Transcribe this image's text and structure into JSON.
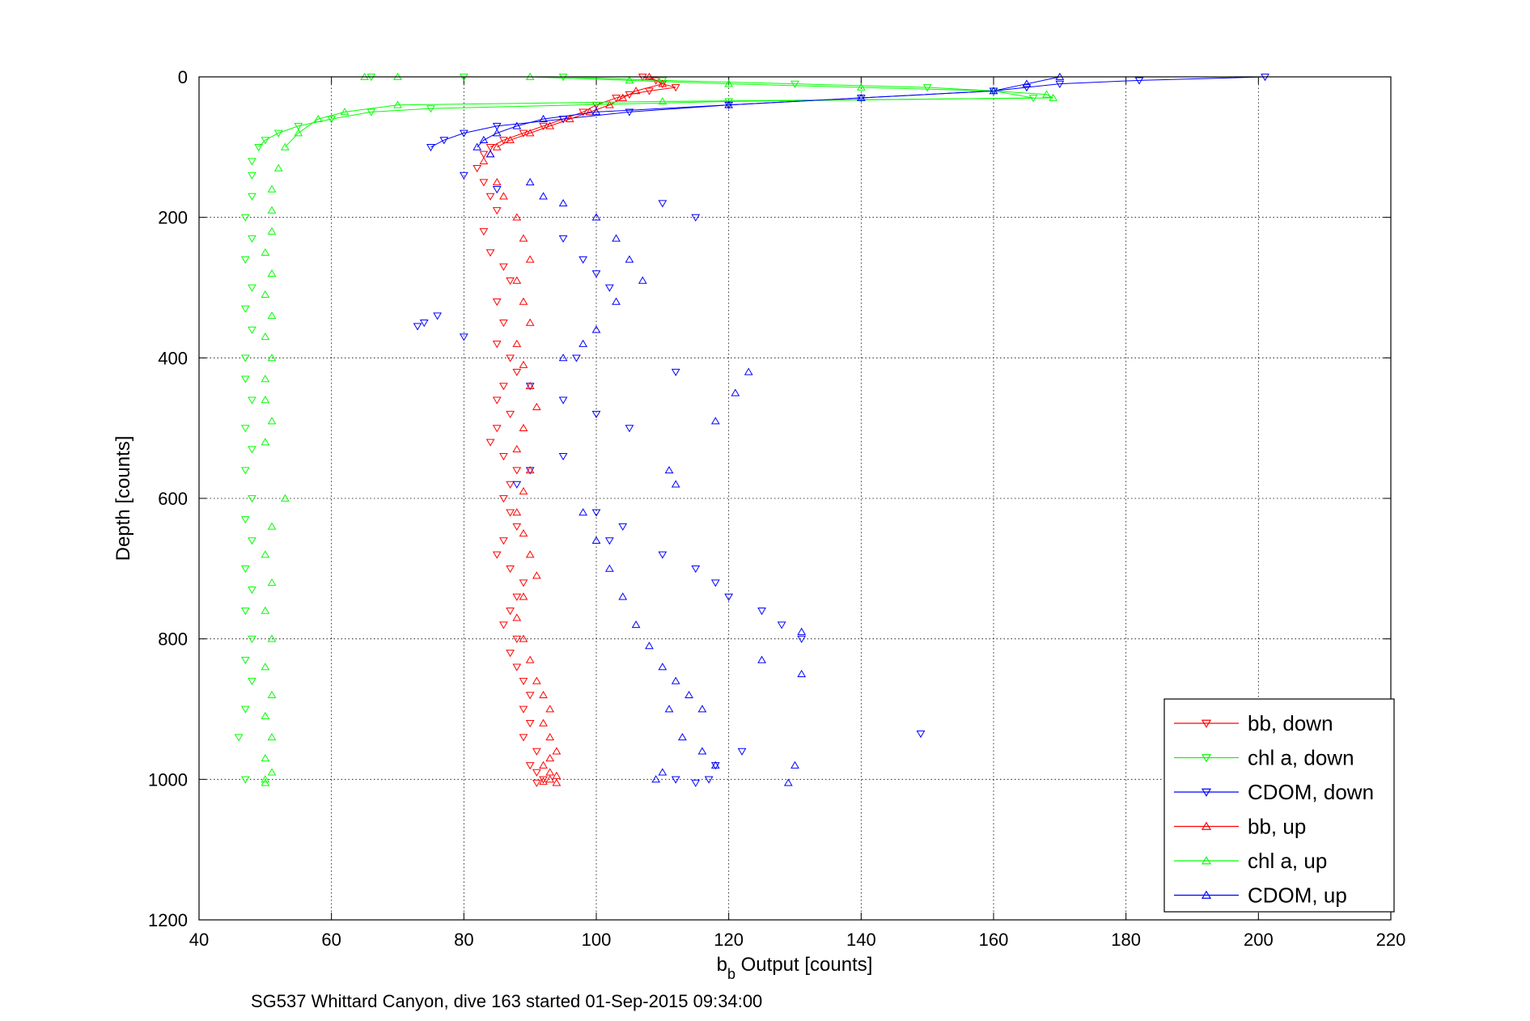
{
  "chart_data": {
    "type": "scatter",
    "title": "",
    "xlabel_main": "b",
    "xlabel_sub": "b",
    "xlabel_rest": " Output [counts]",
    "ylabel": "Depth [counts]",
    "caption": "SG537 Whittard Canyon, dive 163 started 01-Sep-2015 09:34:00",
    "xlim": [
      40,
      220
    ],
    "ylim": [
      0,
      1200
    ],
    "y_reversed": true,
    "grid": true,
    "legend_position": "bottom-right",
    "xticks": [
      40,
      60,
      80,
      100,
      120,
      140,
      160,
      180,
      200,
      220
    ],
    "yticks": [
      0,
      200,
      400,
      600,
      800,
      1000,
      1200
    ],
    "series": [
      {
        "name": "bb, down",
        "color": "#ff0000",
        "marker": "triangle-down",
        "x": [
          107,
          109,
          110,
          112,
          108,
          105,
          103,
          100,
          98,
          95,
          92,
          89,
          86,
          84,
          83,
          82,
          83,
          84,
          85,
          83,
          84,
          86,
          87,
          85,
          86,
          85,
          87,
          88,
          86,
          85,
          87,
          85,
          84,
          86,
          88,
          87,
          86,
          87,
          88,
          86,
          85,
          87,
          89,
          88,
          87,
          86,
          88,
          87,
          88,
          89,
          90,
          89,
          90,
          89,
          91,
          90,
          91,
          92,
          91
        ],
        "y": [
          0,
          5,
          10,
          15,
          20,
          25,
          30,
          40,
          50,
          60,
          70,
          80,
          90,
          100,
          110,
          130,
          150,
          170,
          190,
          220,
          250,
          270,
          290,
          320,
          350,
          380,
          400,
          420,
          440,
          460,
          480,
          500,
          520,
          540,
          560,
          580,
          600,
          620,
          640,
          660,
          680,
          700,
          720,
          740,
          760,
          780,
          800,
          820,
          840,
          860,
          880,
          900,
          920,
          940,
          960,
          980,
          990,
          1000,
          1005
        ]
      },
      {
        "name": "chl a, down",
        "color": "#00ff00",
        "marker": "triangle-down",
        "x": [
          66,
          80,
          95,
          110,
          130,
          150,
          160,
          166,
          120,
          75,
          66,
          60,
          55,
          52,
          50,
          49,
          48,
          48,
          48,
          47,
          48,
          47,
          48,
          47,
          48,
          47,
          47,
          48,
          47,
          48,
          47,
          48,
          47,
          48,
          47,
          48,
          47,
          48,
          47,
          48,
          47,
          46,
          47
        ],
        "y": [
          0,
          0,
          0,
          5,
          10,
          15,
          20,
          30,
          35,
          45,
          50,
          60,
          70,
          80,
          90,
          100,
          120,
          140,
          170,
          200,
          230,
          260,
          300,
          330,
          360,
          400,
          430,
          460,
          500,
          530,
          560,
          600,
          630,
          660,
          700,
          730,
          760,
          800,
          830,
          860,
          900,
          940,
          1000
        ]
      },
      {
        "name": "CDOM, down",
        "color": "#0000ff",
        "marker": "triangle-down",
        "x": [
          201,
          182,
          170,
          165,
          160,
          140,
          120,
          105,
          95,
          85,
          80,
          77,
          75,
          80,
          85,
          110,
          115,
          95,
          98,
          100,
          102,
          76,
          74,
          73,
          80,
          97,
          112,
          90,
          95,
          100,
          105,
          95,
          90,
          88,
          100,
          104,
          102,
          110,
          115,
          118,
          120,
          125,
          128,
          131,
          149,
          122,
          118,
          112,
          115,
          117
        ],
        "y": [
          0,
          5,
          10,
          15,
          20,
          30,
          40,
          50,
          60,
          70,
          80,
          90,
          100,
          140,
          160,
          180,
          200,
          230,
          260,
          280,
          300,
          340,
          350,
          355,
          370,
          400,
          420,
          440,
          460,
          480,
          500,
          540,
          560,
          580,
          620,
          640,
          660,
          680,
          700,
          720,
          740,
          760,
          780,
          800,
          935,
          960,
          980,
          1000,
          1005,
          1000
        ]
      },
      {
        "name": "bb, up",
        "color": "#ff0000",
        "marker": "triangle-up",
        "x": [
          108,
          110,
          106,
          104,
          102,
          99,
          96,
          93,
          90,
          87,
          85,
          84,
          83,
          85,
          86,
          88,
          89,
          90,
          88,
          89,
          90,
          88,
          89,
          90,
          91,
          89,
          88,
          90,
          89,
          88,
          89,
          90,
          91,
          89,
          88,
          89,
          90,
          91,
          92,
          93,
          92,
          93,
          94,
          93,
          92,
          93,
          94,
          93,
          92,
          94
        ],
        "y": [
          0,
          10,
          20,
          30,
          40,
          50,
          60,
          70,
          80,
          90,
          100,
          110,
          120,
          150,
          170,
          200,
          230,
          260,
          290,
          320,
          350,
          380,
          410,
          440,
          470,
          500,
          530,
          560,
          590,
          620,
          650,
          680,
          710,
          740,
          770,
          800,
          830,
          860,
          880,
          900,
          920,
          940,
          960,
          970,
          980,
          990,
          995,
          1000,
          1003,
          1005
        ]
      },
      {
        "name": "chl a, up",
        "color": "#00ff00",
        "marker": "triangle-up",
        "x": [
          65,
          70,
          90,
          105,
          120,
          140,
          160,
          168,
          169,
          110,
          70,
          62,
          58,
          55,
          53,
          52,
          51,
          51,
          51,
          50,
          51,
          50,
          51,
          50,
          51,
          50,
          50,
          51,
          50,
          53,
          51,
          50,
          51,
          50,
          51,
          50,
          51,
          50,
          51,
          50,
          51,
          50,
          50
        ],
        "y": [
          0,
          0,
          0,
          5,
          10,
          15,
          20,
          25,
          30,
          35,
          40,
          50,
          60,
          80,
          100,
          130,
          160,
          190,
          220,
          250,
          280,
          310,
          340,
          370,
          400,
          430,
          460,
          490,
          520,
          600,
          640,
          680,
          720,
          760,
          800,
          840,
          880,
          910,
          940,
          970,
          990,
          1000,
          1005
        ]
      },
      {
        "name": "CDOM, up",
        "color": "#0000ff",
        "marker": "triangle-up",
        "x": [
          170,
          165,
          160,
          140,
          120,
          100,
          92,
          88,
          85,
          83,
          82,
          84,
          90,
          92,
          95,
          100,
          103,
          105,
          107,
          103,
          100,
          98,
          95,
          123,
          121,
          118,
          111,
          112,
          98,
          100,
          102,
          104,
          106,
          108,
          110,
          112,
          114,
          116,
          131,
          131,
          125,
          111,
          113,
          116,
          118,
          110,
          109,
          129,
          130
        ],
        "y": [
          0,
          10,
          20,
          30,
          40,
          50,
          60,
          70,
          80,
          90,
          100,
          110,
          150,
          170,
          180,
          200,
          230,
          260,
          290,
          320,
          360,
          380,
          400,
          420,
          450,
          490,
          560,
          580,
          620,
          660,
          700,
          740,
          780,
          810,
          840,
          860,
          880,
          900,
          790,
          850,
          830,
          900,
          940,
          960,
          980,
          990,
          1000,
          1005,
          980
        ]
      }
    ]
  }
}
